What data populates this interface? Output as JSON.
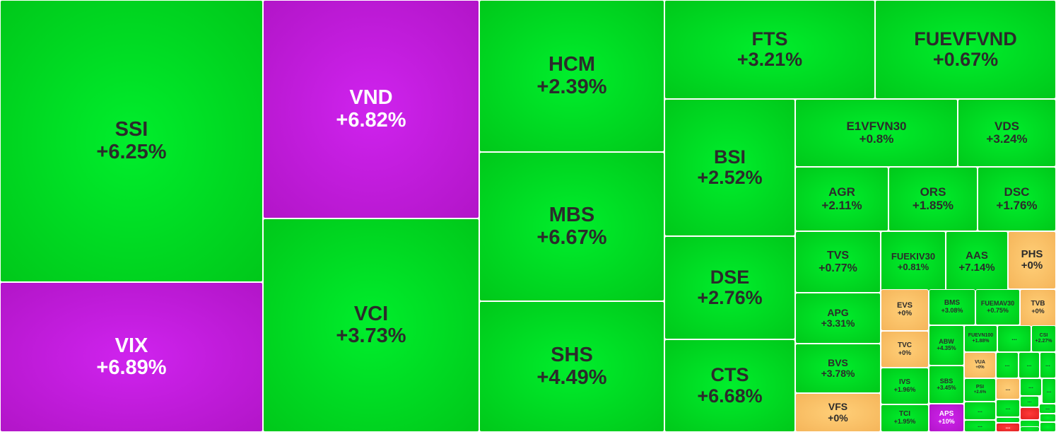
{
  "colors": {
    "up": "#00d91f",
    "ceiling": "#c21cdb",
    "reference": "#f7bf64",
    "down": "#ee2b2b",
    "text_dark": "#2b2b2b",
    "text_light": "#ffffff"
  },
  "treemap": {
    "tiles": [
      {
        "code": "SSI",
        "change": "+6.25%",
        "status": "up"
      },
      {
        "code": "VIX",
        "change": "+6.89%",
        "status": "ceiling"
      },
      {
        "code": "VND",
        "change": "+6.82%",
        "status": "ceiling"
      },
      {
        "code": "VCI",
        "change": "+3.73%",
        "status": "up"
      },
      {
        "code": "HCM",
        "change": "+2.39%",
        "status": "up"
      },
      {
        "code": "MBS",
        "change": "+6.67%",
        "status": "up"
      },
      {
        "code": "SHS",
        "change": "+4.49%",
        "status": "up"
      },
      {
        "code": "FTS",
        "change": "+3.21%",
        "status": "up"
      },
      {
        "code": "FUEVFVND",
        "change": "+0.67%",
        "status": "up"
      },
      {
        "code": "BSI",
        "change": "+2.52%",
        "status": "up"
      },
      {
        "code": "DSE",
        "change": "+2.76%",
        "status": "up"
      },
      {
        "code": "CTS",
        "change": "+6.68%",
        "status": "up"
      },
      {
        "code": "E1VFVN30",
        "change": "+0.8%",
        "status": "up"
      },
      {
        "code": "VDS",
        "change": "+3.24%",
        "status": "up"
      },
      {
        "code": "AGR",
        "change": "+2.11%",
        "status": "up"
      },
      {
        "code": "ORS",
        "change": "+1.85%",
        "status": "up"
      },
      {
        "code": "DSC",
        "change": "+1.76%",
        "status": "up"
      },
      {
        "code": "TVS",
        "change": "+0.77%",
        "status": "up"
      },
      {
        "code": "FUEKIV30",
        "change": "+0.81%",
        "status": "up"
      },
      {
        "code": "AAS",
        "change": "+7.14%",
        "status": "up"
      },
      {
        "code": "PHS",
        "change": "+0%",
        "status": "reference"
      },
      {
        "code": "APG",
        "change": "+3.31%",
        "status": "up"
      },
      {
        "code": "BVS",
        "change": "+3.78%",
        "status": "up"
      },
      {
        "code": "VFS",
        "change": "+0%",
        "status": "reference"
      },
      {
        "code": "EVS",
        "change": "+0%",
        "status": "reference"
      },
      {
        "code": "BMS",
        "change": "+3.08%",
        "status": "up"
      },
      {
        "code": "FUEMAV30",
        "change": "+0.75%",
        "status": "up"
      },
      {
        "code": "TVB",
        "change": "+0%",
        "status": "reference"
      },
      {
        "code": "TVC",
        "change": "+0%",
        "status": "reference"
      },
      {
        "code": "ABW",
        "change": "+4.35%",
        "status": "up"
      },
      {
        "code": "FUEVN100",
        "change": "+1.88%",
        "status": "up"
      },
      {
        "code": "...",
        "change": "",
        "status": "up"
      },
      {
        "code": "CSI",
        "change": "+2.27%",
        "status": "up"
      },
      {
        "code": "VUA",
        "change": "+0%",
        "status": "reference"
      },
      {
        "code": "...",
        "change": "",
        "status": "up"
      },
      {
        "code": "...",
        "change": "",
        "status": "up"
      },
      {
        "code": "...",
        "change": "",
        "status": "up"
      },
      {
        "code": "IVS",
        "change": "+1.96%",
        "status": "up"
      },
      {
        "code": "SBS",
        "change": "+3.45%",
        "status": "up"
      },
      {
        "code": "PSI",
        "change": "+2.6%",
        "status": "up"
      },
      {
        "code": "...",
        "change": "",
        "status": "reference"
      },
      {
        "code": "...",
        "change": "",
        "status": "up"
      },
      {
        "code": "...",
        "change": "",
        "status": "up"
      },
      {
        "code": "TCI",
        "change": "+1.95%",
        "status": "up"
      },
      {
        "code": "APS",
        "change": "+10%",
        "status": "ceiling"
      },
      {
        "code": "...",
        "change": "",
        "status": "up"
      },
      {
        "code": "...",
        "change": "",
        "status": "up"
      },
      {
        "code": "...",
        "change": "",
        "status": "up"
      },
      {
        "code": "...",
        "change": "",
        "status": "up"
      },
      {
        "code": "",
        "change": "",
        "status": "down"
      },
      {
        "code": "",
        "change": "",
        "status": "up"
      },
      {
        "code": "...",
        "change": "",
        "status": "up"
      },
      {
        "code": "",
        "change": "",
        "status": "up"
      },
      {
        "code": "",
        "change": "",
        "status": "up"
      },
      {
        "code": "...",
        "change": "",
        "status": "down"
      },
      {
        "code": "",
        "change": "",
        "status": "up"
      },
      {
        "code": "",
        "change": "",
        "status": "up"
      }
    ]
  }
}
